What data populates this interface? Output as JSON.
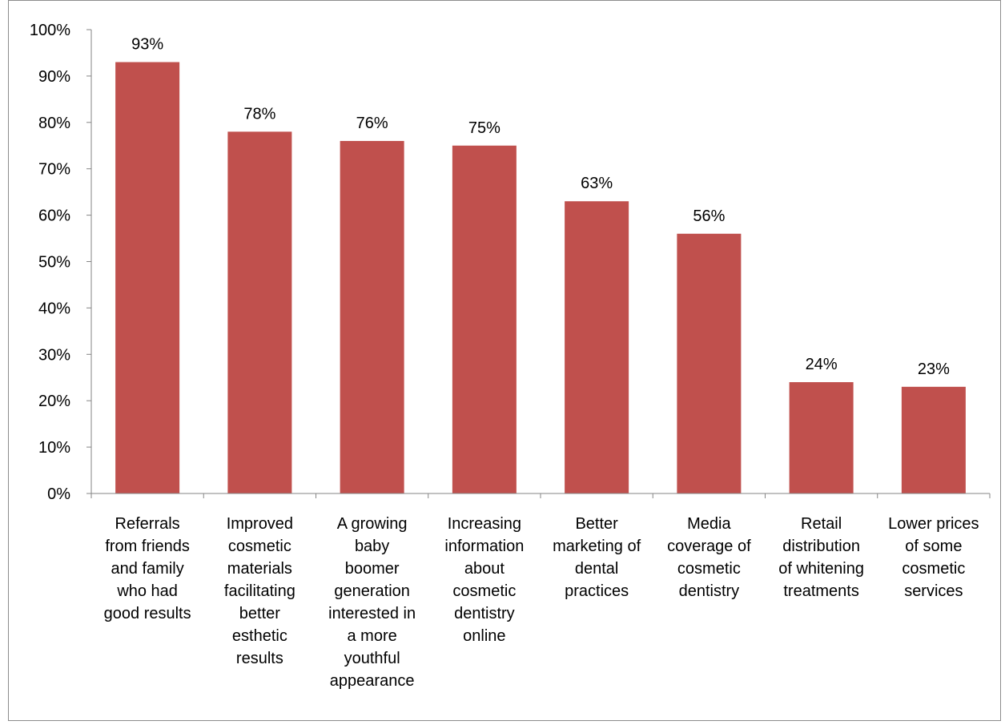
{
  "chart_data": {
    "type": "bar",
    "title": "",
    "xlabel": "",
    "ylabel": "",
    "ylim": [
      0,
      100
    ],
    "y_ticks": [
      0,
      10,
      20,
      30,
      40,
      50,
      60,
      70,
      80,
      90,
      100
    ],
    "y_tick_format": "percent",
    "grid": false,
    "legend": "none",
    "bar_color": "#C0504D",
    "categories": [
      "Referrals from friends and family who had good results",
      "Improved cosmetic materials facilitating better esthetic results",
      "A growing baby boomer generation interested in a more youthful appearance",
      "Increasing information about cosmetic dentistry online",
      "Better marketing of dental practices",
      "Media coverage of cosmetic dentistry",
      "Retail distribution of whitening treatments",
      "Lower prices of some cosmetic services"
    ],
    "category_lines": [
      [
        "Referrals",
        "from friends",
        "and family",
        "who had",
        "good results"
      ],
      [
        "Improved",
        "cosmetic",
        "materials",
        "facilitating",
        "better",
        "esthetic",
        "results"
      ],
      [
        "A growing",
        "baby",
        "boomer",
        "generation",
        "interested in",
        "a more",
        "youthful",
        "appearance"
      ],
      [
        "Increasing",
        "information",
        "about",
        "cosmetic",
        "dentistry",
        "online"
      ],
      [
        "Better",
        "marketing of",
        "dental",
        "practices"
      ],
      [
        "Media",
        "coverage of",
        "cosmetic",
        "dentistry"
      ],
      [
        "Retail",
        "distribution",
        "of whitening",
        "treatments"
      ],
      [
        "Lower prices",
        "of some",
        "cosmetic",
        "services"
      ]
    ],
    "values": [
      93,
      78,
      76,
      75,
      63,
      56,
      24,
      23
    ],
    "data_labels": [
      "93%",
      "78%",
      "76%",
      "75%",
      "63%",
      "56%",
      "24%",
      "23%"
    ]
  }
}
